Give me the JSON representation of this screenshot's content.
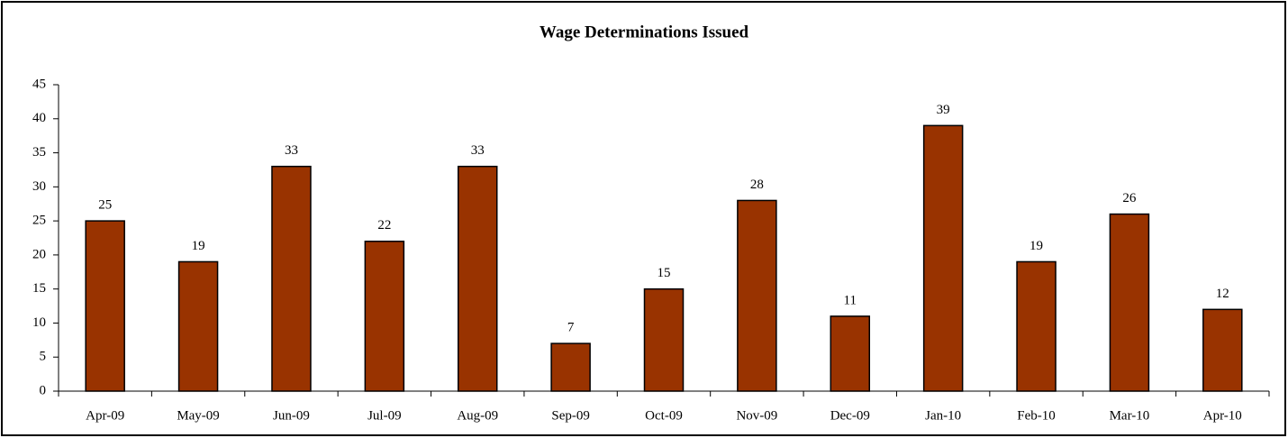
{
  "chart_data": {
    "type": "bar",
    "title": "Wage Determinations Issued",
    "categories": [
      "Apr-09",
      "May-09",
      "Jun-09",
      "Jul-09",
      "Aug-09",
      "Sep-09",
      "Oct-09",
      "Nov-09",
      "Dec-09",
      "Jan-10",
      "Feb-10",
      "Mar-10",
      "Apr-10"
    ],
    "values": [
      25,
      19,
      33,
      22,
      33,
      7,
      15,
      28,
      11,
      39,
      19,
      26,
      12
    ],
    "color": "#993300",
    "ylim": [
      0,
      45
    ],
    "yticks": [
      0,
      5,
      10,
      15,
      20,
      25,
      30,
      35,
      40,
      45
    ],
    "grid": false,
    "data_labels": true
  }
}
